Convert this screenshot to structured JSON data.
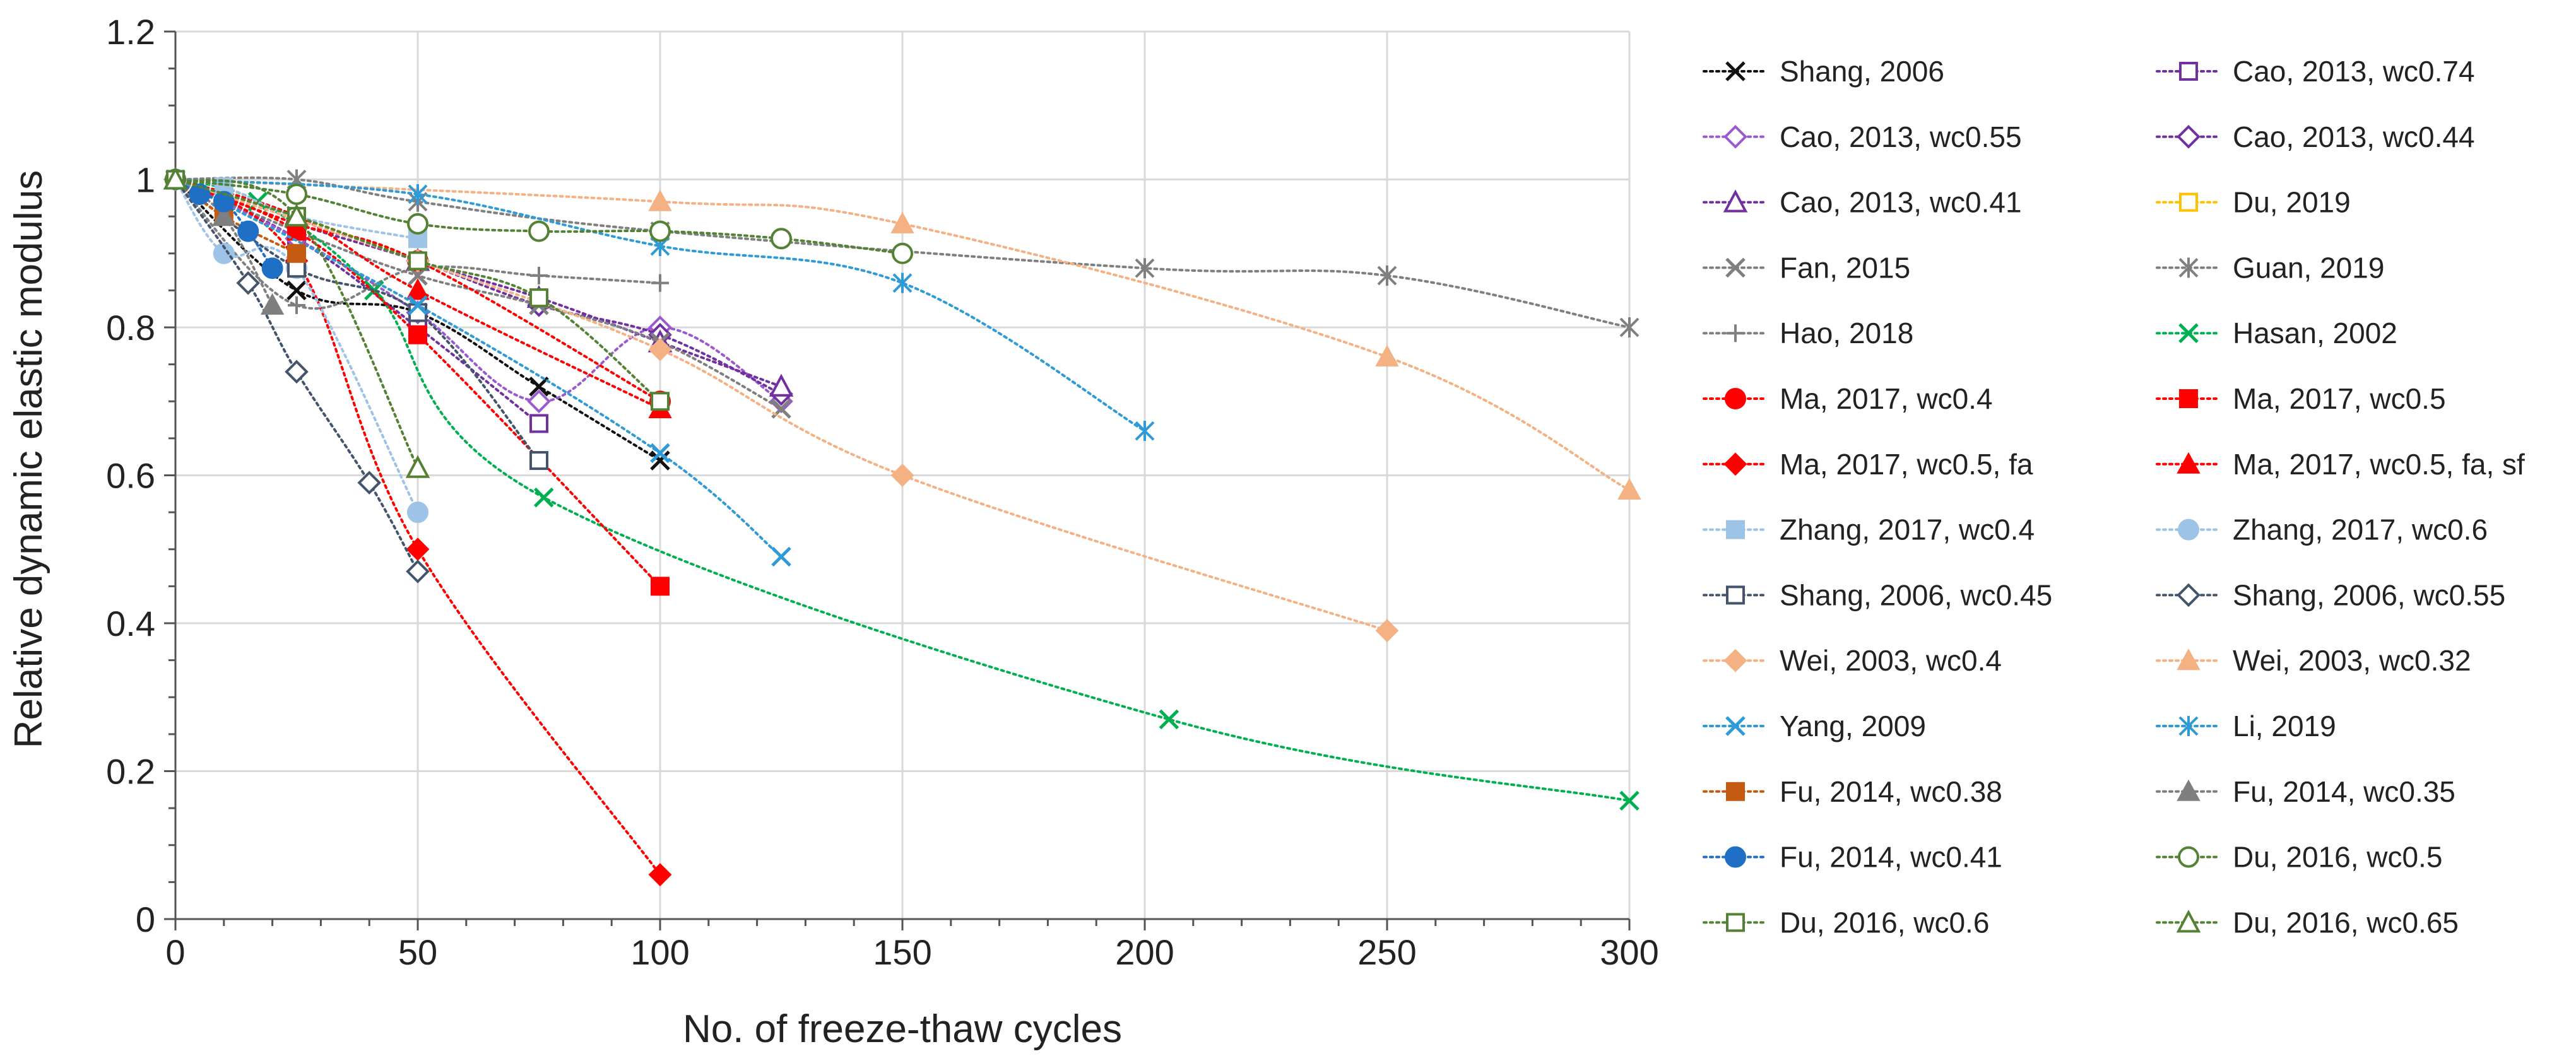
{
  "chart_data": {
    "type": "line",
    "xlabel": "No. of freeze-thaw cycles",
    "ylabel": "Relative dynamic elastic modulus",
    "xlim": [
      0,
      300
    ],
    "ylim": [
      0,
      1.2
    ],
    "xticks": [
      "0",
      "50",
      "100",
      "150",
      "200",
      "250",
      "300"
    ],
    "yticks": [
      "0",
      "0.2",
      "0.4",
      "0.6",
      "0.8",
      "1",
      "1.2"
    ],
    "grid": true,
    "legend_position": "right",
    "series": [
      {
        "name": "Shang, 2006",
        "color": "#111111",
        "marker": "x",
        "x": [
          0,
          25,
          50,
          75,
          100
        ],
        "y": [
          1.0,
          0.85,
          0.82,
          0.72,
          0.62
        ]
      },
      {
        "name": "Cao, 2013, wc0.74",
        "color": "#7030a0",
        "marker": "square-open",
        "x": [
          0,
          25,
          50,
          75
        ],
        "y": [
          1.0,
          0.92,
          0.8,
          0.67
        ]
      },
      {
        "name": "Cao, 2013, wc0.55",
        "color": "#9b59d0",
        "marker": "diamond-open",
        "x": [
          0,
          25,
          50,
          75,
          100,
          125
        ],
        "y": [
          1.0,
          0.92,
          0.82,
          0.7,
          0.8,
          0.7
        ]
      },
      {
        "name": "Cao, 2013, wc0.44",
        "color": "#7030a0",
        "marker": "diamond-open",
        "x": [
          0,
          25,
          50,
          75,
          100,
          125
        ],
        "y": [
          1.0,
          0.94,
          0.89,
          0.83,
          0.79,
          0.71
        ]
      },
      {
        "name": "Cao, 2013, wc0.41",
        "color": "#7030a0",
        "marker": "triangle-open",
        "x": [
          0,
          25,
          50,
          75,
          100,
          125
        ],
        "y": [
          1.0,
          0.95,
          0.89,
          0.84,
          0.78,
          0.72
        ]
      },
      {
        "name": "Du, 2019",
        "color": "#ffc000",
        "marker": "square-open",
        "x": [
          0,
          25,
          50
        ],
        "y": [
          1.0,
          0.95,
          0.89
        ]
      },
      {
        "name": "Fan, 2015",
        "color": "#7f7f7f",
        "marker": "x",
        "x": [
          0,
          25,
          50,
          75,
          100,
          125
        ],
        "y": [
          1.0,
          0.93,
          0.87,
          0.83,
          0.78,
          0.69
        ]
      },
      {
        "name": "Guan, 2019",
        "color": "#7f7f7f",
        "marker": "asterisk",
        "x": [
          0,
          25,
          50,
          100,
          200,
          250,
          300
        ],
        "y": [
          1.0,
          1.0,
          0.97,
          0.93,
          0.88,
          0.87,
          0.8
        ]
      },
      {
        "name": "Hao, 2018",
        "color": "#7f7f7f",
        "marker": "plus",
        "x": [
          0,
          25,
          50,
          75,
          100
        ],
        "y": [
          1.0,
          0.83,
          0.88,
          0.87,
          0.86
        ]
      },
      {
        "name": "Hasan, 2002",
        "color": "#00b050",
        "marker": "x",
        "x": [
          0,
          17,
          41,
          76,
          205,
          300
        ],
        "y": [
          1.0,
          0.97,
          0.85,
          0.57,
          0.27,
          0.16
        ]
      },
      {
        "name": "Ma, 2017, wc0.4",
        "color": "#ff0000",
        "marker": "circle",
        "x": [
          0,
          25,
          50,
          100
        ],
        "y": [
          1.0,
          0.94,
          0.89,
          0.7
        ]
      },
      {
        "name": "Ma, 2017, wc0.5",
        "color": "#ff0000",
        "marker": "square",
        "x": [
          0,
          25,
          50,
          100
        ],
        "y": [
          1.0,
          0.93,
          0.79,
          0.45
        ]
      },
      {
        "name": "Ma, 2017, wc0.5, fa",
        "color": "#ff0000",
        "marker": "diamond",
        "x": [
          0,
          25,
          50,
          100
        ],
        "y": [
          1.0,
          0.89,
          0.5,
          0.06
        ]
      },
      {
        "name": "Ma, 2017, wc0.5, fa, sf",
        "color": "#ff0000",
        "marker": "triangle",
        "x": [
          0,
          25,
          50,
          100
        ],
        "y": [
          1.0,
          0.95,
          0.85,
          0.69
        ]
      },
      {
        "name": "Zhang, 2017, wc0.4",
        "color": "#9dc3e6",
        "marker": "square",
        "x": [
          0,
          10,
          25,
          50
        ],
        "y": [
          1.0,
          0.99,
          0.95,
          0.92
        ]
      },
      {
        "name": "Zhang, 2017, wc0.6",
        "color": "#9dc3e6",
        "marker": "circle",
        "x": [
          0,
          10,
          25,
          50
        ],
        "y": [
          1.0,
          0.9,
          0.88,
          0.55
        ]
      },
      {
        "name": "Shang, 2006, wc0.45",
        "color": "#44546a",
        "marker": "square-open",
        "x": [
          0,
          25,
          50,
          75
        ],
        "y": [
          1.0,
          0.88,
          0.82,
          0.62
        ]
      },
      {
        "name": "Shang, 2006, wc0.55",
        "color": "#44546a",
        "marker": "diamond-open",
        "x": [
          0,
          15,
          25,
          40,
          50
        ],
        "y": [
          1.0,
          0.86,
          0.74,
          0.59,
          0.47
        ]
      },
      {
        "name": "Wei, 2003, wc0.4",
        "color": "#f4b183",
        "marker": "diamond",
        "x": [
          0,
          50,
          100,
          150,
          250
        ],
        "y": [
          1.0,
          0.89,
          0.77,
          0.6,
          0.39
        ]
      },
      {
        "name": "Wei, 2003, wc0.32",
        "color": "#f4b183",
        "marker": "triangle",
        "x": [
          0,
          100,
          150,
          250,
          300
        ],
        "y": [
          1.0,
          0.97,
          0.94,
          0.76,
          0.58
        ]
      },
      {
        "name": "Yang, 2009",
        "color": "#2e9bd6",
        "marker": "x",
        "x": [
          0,
          50,
          100,
          125
        ],
        "y": [
          1.0,
          0.83,
          0.63,
          0.49
        ]
      },
      {
        "name": "Li, 2019",
        "color": "#2e9bd6",
        "marker": "asterisk",
        "x": [
          0,
          50,
          100,
          150,
          200
        ],
        "y": [
          1.0,
          0.98,
          0.91,
          0.86,
          0.66
        ]
      },
      {
        "name": "Fu, 2014, wc0.38",
        "color": "#c55a11",
        "marker": "square",
        "x": [
          0,
          10,
          25
        ],
        "y": [
          1.0,
          0.95,
          0.9
        ]
      },
      {
        "name": "Fu, 2014, wc0.35",
        "color": "#7f7f7f",
        "marker": "triangle",
        "x": [
          0,
          10,
          20
        ],
        "y": [
          1.0,
          0.95,
          0.83
        ]
      },
      {
        "name": "Fu, 2014, wc0.41",
        "color": "#1f6fc5",
        "marker": "circle",
        "x": [
          0,
          5,
          10,
          15,
          20
        ],
        "y": [
          1.0,
          0.98,
          0.97,
          0.93,
          0.88
        ]
      },
      {
        "name": "Du, 2016, wc0.5",
        "color": "#548235",
        "marker": "circle-open",
        "x": [
          0,
          25,
          50,
          75,
          100,
          125,
          150
        ],
        "y": [
          1.0,
          0.98,
          0.94,
          0.93,
          0.93,
          0.92,
          0.9
        ]
      },
      {
        "name": "Du, 2016, wc0.6",
        "color": "#548235",
        "marker": "square-open",
        "x": [
          0,
          25,
          50,
          75,
          100
        ],
        "y": [
          1.0,
          0.95,
          0.89,
          0.84,
          0.7
        ]
      },
      {
        "name": "Du, 2016, wc0.65",
        "color": "#548235",
        "marker": "triangle-open",
        "x": [
          0,
          25,
          50
        ],
        "y": [
          1.0,
          0.95,
          0.61
        ]
      }
    ]
  }
}
